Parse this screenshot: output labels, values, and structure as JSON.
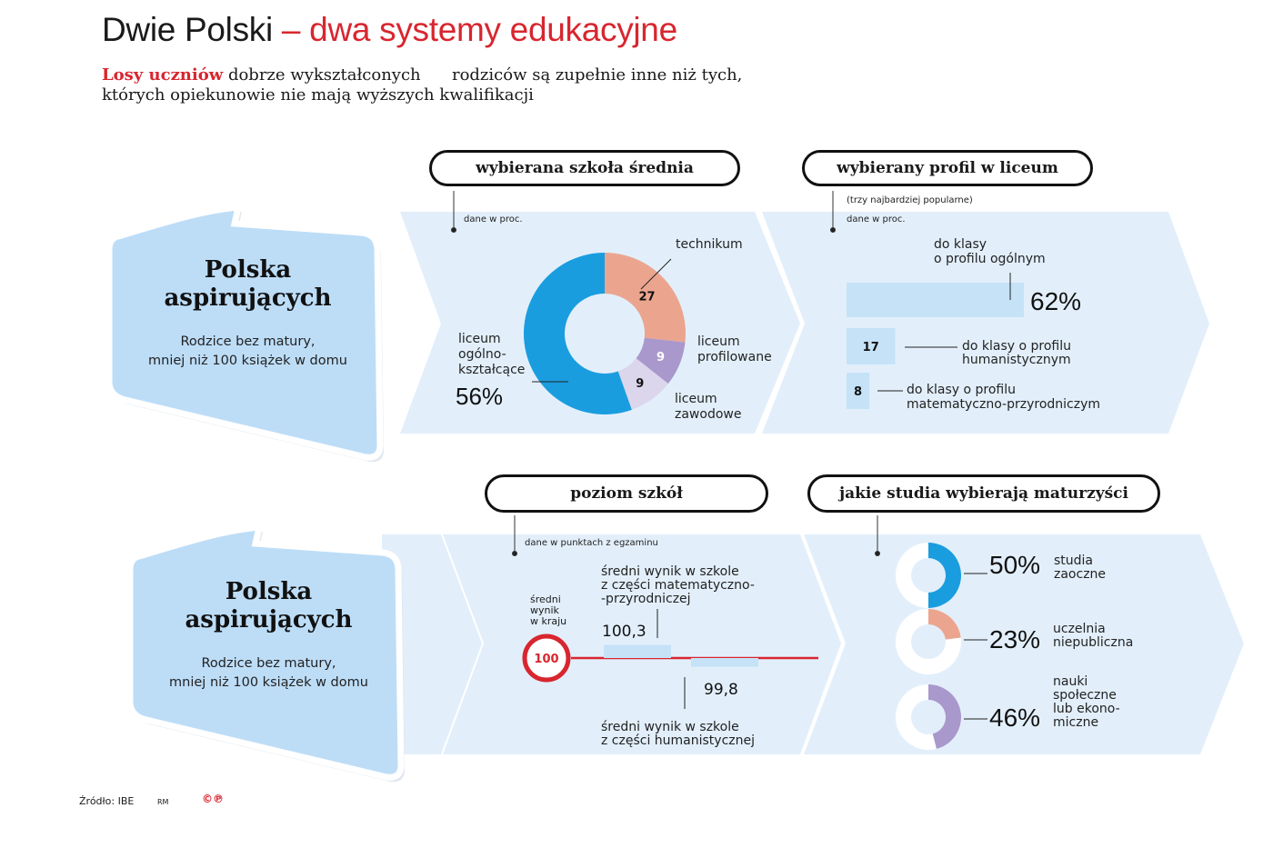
{
  "header": {
    "title_black": "Dwie Polski",
    "title_red": "– dwa systemy edukacyjne",
    "subtitle_red": "Losy uczniów",
    "subtitle_rest1": " dobrze wykształconych      rodziców są zupełnie inne niż tych,",
    "subtitle_line2": "których opiekunowie nie mają wyższych kwalifikacji"
  },
  "cards": [
    {
      "title_line1": "Polska",
      "title_line2": "aspirujących",
      "desc_line1": "Rodzice bez matury,",
      "desc_line2": "mniej niż 100 książek w domu"
    },
    {
      "title_line1": "Polska",
      "title_line2": "aspirujących",
      "desc_line1": "Rodzice bez matury,",
      "desc_line2": "mniej niż 100 książek w domu"
    }
  ],
  "pills": {
    "school": "wybierana szkoła średnia",
    "profile": "wybierany profil w liceum",
    "level": "poziom szkół",
    "studies": "jakie studia wybierają maturzyści"
  },
  "notes": {
    "school_unit": "dane w proc.",
    "profile_sub": "(trzy najbardziej popularne)",
    "profile_unit": "dane w proc.",
    "level_unit": "dane w punktach z egzaminu"
  },
  "labels": {
    "technikum": "technikum",
    "lo_1": "liceum",
    "lo_2": "ogólno-",
    "lo_3": "kształcące",
    "lo_pct": "56%",
    "lp_1": "liceum",
    "lp_2": "profilowane",
    "lz_1": "liceum",
    "lz_2": "zawodowe",
    "prof_gen_1": "do klasy",
    "prof_gen_2": "o profilu ogólnym",
    "prof_gen_pct": "62%",
    "prof_hum_1": "do klasy o profilu",
    "prof_hum_2": "humanistycznym",
    "prof_mat_1": "do klasy o profilu",
    "prof_mat_2": "matematyczno-przyrodniczym",
    "avg_1": "średni",
    "avg_2": "wynik",
    "avg_3": "w kraju",
    "math_1": "średni wynik w szkole",
    "math_2": "z części matematyczno-",
    "math_3": "-przyrodniczej",
    "hum_1": "średni wynik w szkole",
    "hum_2": "z części humanistycznej",
    "st1_pct": "50%",
    "st1_1": "studia",
    "st1_2": "zaoczne",
    "st2_pct": "23%",
    "st2_1": "uczelnia",
    "st2_2": "niepubliczna",
    "st3_pct": "46%",
    "st3_1": "nauki",
    "st3_2": "społeczne",
    "st3_3": "lub ekono-",
    "st3_4": "miczne"
  },
  "footer": {
    "source": "Źródło: IBE",
    "author": "RM",
    "logo": "©℗"
  },
  "colors": {
    "red": "#d8262f",
    "blue": "#1a9ddf",
    "salmon": "#eba58f",
    "purple": "#a998cc",
    "lilac": "#dcd6ec",
    "panel": "#e2effb",
    "card": "#bdddf7",
    "bar": "#c5e2f7"
  },
  "chart_data": [
    {
      "type": "pie",
      "title": "wybierana szkoła średnia",
      "unit": "dane w proc.",
      "categories": [
        "technikum",
        "liceum profilowane",
        "liceum zawodowe",
        "liceum ogólnokształcące"
      ],
      "values": [
        27,
        9,
        9,
        56
      ],
      "colors": [
        "#eba58f",
        "#a998cc",
        "#dcd6ec",
        "#1a9ddf"
      ]
    },
    {
      "type": "bar",
      "title": "wybierany profil w liceum",
      "unit": "dane w proc.",
      "categories": [
        "do klasy o profilu ogólnym",
        "do klasy o profilu humanistycznym",
        "do klasy o profilu matematyczno-przyrodniczym"
      ],
      "values": [
        62,
        17,
        8
      ]
    },
    {
      "type": "bar",
      "title": "poziom szkół",
      "unit": "dane w punktach z egzaminu",
      "reference": {
        "label": "średni wynik w kraju",
        "value": 100
      },
      "categories": [
        "średni wynik w szkole z części matematyczno-przyrodniczej",
        "średni wynik w szkole z części humanistycznej"
      ],
      "values": [
        100.3,
        99.8
      ]
    },
    {
      "type": "pie",
      "title": "jakie studia wybierają maturzyści",
      "categories": [
        "studia zaoczne",
        "uczelnia niepubliczna",
        "nauki społeczne lub ekonomiczne"
      ],
      "values": [
        50,
        23,
        46
      ],
      "colors": [
        "#1a9ddf",
        "#eba58f",
        "#a998cc"
      ]
    }
  ]
}
